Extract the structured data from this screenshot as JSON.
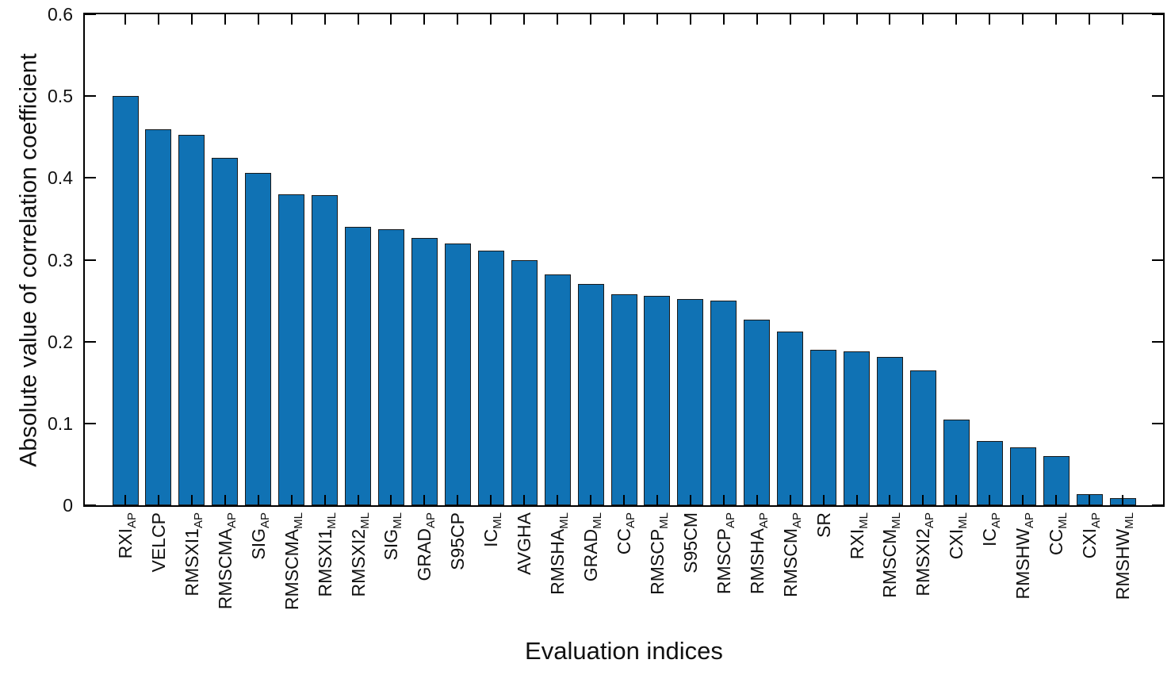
{
  "figure": {
    "background": "#ffffff",
    "text_color": "#111111",
    "axis_color": "#000000"
  },
  "chart_data": {
    "type": "bar",
    "title": "",
    "xlabel": "Evaluation indices",
    "ylabel": "Absolute value of correlation coefficient",
    "ylim": [
      0,
      0.6
    ],
    "ytick_labels": [
      "0",
      "0.1",
      "0.2",
      "0.3",
      "0.4",
      "0.5",
      "0.6"
    ],
    "ytick_values": [
      0,
      0.1,
      0.2,
      0.3,
      0.4,
      0.5,
      0.6
    ],
    "grid": false,
    "legend": "none",
    "box": true,
    "tick_direction": "in",
    "bar_color": "#1072B4",
    "bar_edge_color": "#1a1a1a",
    "categories": [
      {
        "main": "RXI",
        "sub": "AP"
      },
      {
        "main": "VELCP",
        "sub": ""
      },
      {
        "main": "RMSXI1",
        "sub": "AP"
      },
      {
        "main": "RMSCMA",
        "sub": "AP"
      },
      {
        "main": "SIG",
        "sub": "AP"
      },
      {
        "main": "RMSCMA",
        "sub": "ML"
      },
      {
        "main": "RMSXI1",
        "sub": "ML"
      },
      {
        "main": "RMSXI2",
        "sub": "ML"
      },
      {
        "main": "SIG",
        "sub": "ML"
      },
      {
        "main": "GRAD",
        "sub": "AP"
      },
      {
        "main": "S95CP",
        "sub": ""
      },
      {
        "main": "IC",
        "sub": "ML"
      },
      {
        "main": "AVGHA",
        "sub": ""
      },
      {
        "main": "RMSHA",
        "sub": "ML"
      },
      {
        "main": "GRAD",
        "sub": "ML"
      },
      {
        "main": "CC",
        "sub": "AP"
      },
      {
        "main": "RMSCP",
        "sub": "ML"
      },
      {
        "main": "S95CM",
        "sub": ""
      },
      {
        "main": "RMSCP",
        "sub": "AP"
      },
      {
        "main": "RMSHA",
        "sub": "AP"
      },
      {
        "main": "RMSCM",
        "sub": "AP"
      },
      {
        "main": "SR",
        "sub": ""
      },
      {
        "main": "RXI",
        "sub": "ML"
      },
      {
        "main": "RMSCM",
        "sub": "ML"
      },
      {
        "main": "RMSXI2",
        "sub": "AP"
      },
      {
        "main": "CXI",
        "sub": "ML"
      },
      {
        "main": "IC",
        "sub": "AP"
      },
      {
        "main": "RMSHW",
        "sub": "AP"
      },
      {
        "main": "CC",
        "sub": "ML"
      },
      {
        "main": "CXI",
        "sub": "AP"
      },
      {
        "main": "RMSHW",
        "sub": "ML"
      }
    ],
    "values": [
      0.5,
      0.459,
      0.453,
      0.425,
      0.406,
      0.38,
      0.379,
      0.34,
      0.337,
      0.327,
      0.32,
      0.311,
      0.3,
      0.282,
      0.27,
      0.258,
      0.256,
      0.252,
      0.25,
      0.227,
      0.212,
      0.19,
      0.188,
      0.181,
      0.165,
      0.105,
      0.079,
      0.071,
      0.06,
      0.014,
      0.009
    ]
  }
}
